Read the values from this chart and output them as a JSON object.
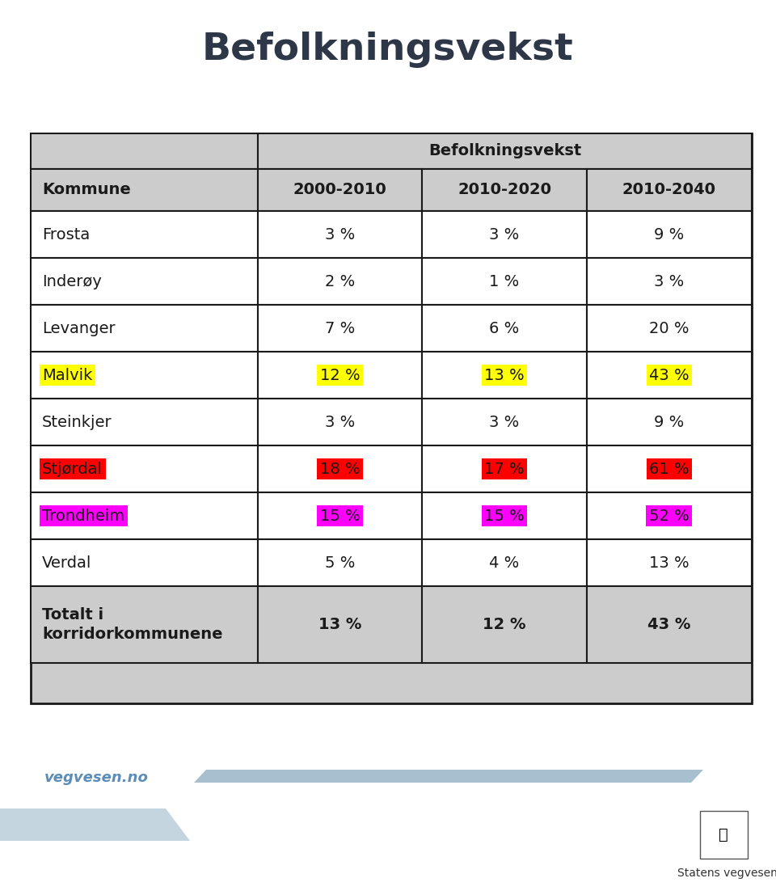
{
  "title": "Befolkningsvekst",
  "title_color": "#2d3748",
  "header_span": "Befolkningsvekst",
  "col_headers": [
    "Kommune",
    "2000-2010",
    "2010-2020",
    "2010-2040"
  ],
  "rows": [
    {
      "name": "Frosta",
      "name_bg": null,
      "vals": [
        "3 %",
        "3 %",
        "9 %"
      ],
      "val_bgs": [
        null,
        null,
        null
      ]
    },
    {
      "name": "Inderøy",
      "name_bg": null,
      "vals": [
        "2 %",
        "1 %",
        "3 %"
      ],
      "val_bgs": [
        null,
        null,
        null
      ]
    },
    {
      "name": "Levanger",
      "name_bg": null,
      "vals": [
        "7 %",
        "6 %",
        "20 %"
      ],
      "val_bgs": [
        null,
        null,
        null
      ]
    },
    {
      "name": "Malvik",
      "name_bg": "#ffff00",
      "vals": [
        "12 %",
        "13 %",
        "43 %"
      ],
      "val_bgs": [
        "#ffff00",
        "#ffff00",
        "#ffff00"
      ]
    },
    {
      "name": "Steinkjer",
      "name_bg": null,
      "vals": [
        "3 %",
        "3 %",
        "9 %"
      ],
      "val_bgs": [
        null,
        null,
        null
      ]
    },
    {
      "name": "Stjørdal",
      "name_bg": "#ff0000",
      "vals": [
        "18 %",
        "17 %",
        "61 %"
      ],
      "val_bgs": [
        "#ff0000",
        "#ff0000",
        "#ff0000"
      ]
    },
    {
      "name": "Trondheim",
      "name_bg": "#ff00ff",
      "vals": [
        "15 %",
        "15 %",
        "52 %"
      ],
      "val_bgs": [
        "#ff00ff",
        "#ff00ff",
        "#ff00ff"
      ]
    },
    {
      "name": "Verdal",
      "name_bg": null,
      "vals": [
        "5 %",
        "4 %",
        "13 %"
      ],
      "val_bgs": [
        null,
        null,
        null
      ]
    }
  ],
  "total_row": {
    "name": "Totalt i\nkorridorkommunene",
    "vals": [
      "13 %",
      "12 %",
      "43 %"
    ]
  },
  "table_bg": "#cccccc",
  "cell_bg": "#ffffff",
  "border_color": "#1a1a1a",
  "footer_text": "vegvesen.no",
  "footer_text2": "Statens vegvesen",
  "footer_color": "#5b8db8",
  "band_color": "#a8bfcf",
  "band2_color": "#c5d5df"
}
